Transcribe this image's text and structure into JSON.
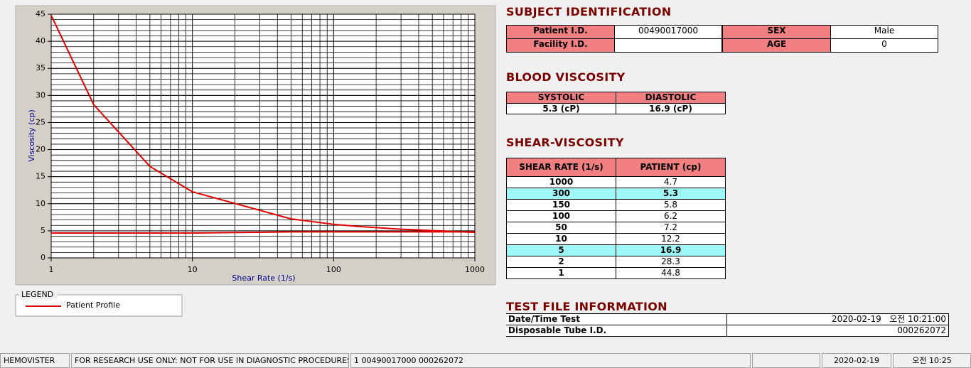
{
  "chart_data": {
    "type": "line",
    "x_scale": "log",
    "x": [
      1,
      2,
      5,
      10,
      50,
      100,
      150,
      300,
      1000
    ],
    "series": [
      {
        "name": "Patient Profile",
        "color": "#e00000",
        "values": [
          44.8,
          28.3,
          16.9,
          12.2,
          7.2,
          6.2,
          5.8,
          5.3,
          4.7
        ]
      },
      {
        "color": "#e00000",
        "values": [
          4.6,
          4.6,
          4.6,
          4.6,
          4.8,
          4.8,
          4.8,
          4.8,
          4.8
        ]
      }
    ],
    "xlim": [
      1,
      1000
    ],
    "xticks": [
      1,
      10,
      100,
      1000
    ],
    "ylim": [
      0,
      45
    ],
    "yticks": [
      0,
      5,
      10,
      15,
      20,
      25,
      30,
      35,
      40,
      45
    ],
    "xlabel": "Shear Rate (1/s)",
    "ylabel": "Viscosity (cp)",
    "grid": true,
    "legend_title": "LEGEND"
  },
  "subject": {
    "title": "SUBJECT IDENTIFICATION",
    "fields": [
      {
        "label": "Patient I.D.",
        "value": "00490017000"
      },
      {
        "label": "SEX",
        "value": "Male"
      },
      {
        "label": "Facility I.D."
      },
      {
        "label": "AGE",
        "value": "0"
      }
    ]
  },
  "blood": {
    "title": "BLOOD VISCOSITY",
    "headers": [
      "SYSTOLIC",
      "DIASTOLIC"
    ],
    "values": [
      "5.3 (cP)",
      "16.9 (cP)"
    ]
  },
  "shear": {
    "title": "SHEAR-VISCOSITY",
    "headers": [
      "SHEAR RATE (1/s)",
      "PATIENT (cp)"
    ],
    "rows": [
      {
        "rate": 1000,
        "patient": 4.7
      },
      {
        "rate": 300,
        "patient": 5.3,
        "highlight": true
      },
      {
        "rate": 150,
        "patient": 5.8
      },
      {
        "rate": 100,
        "patient": 6.2
      },
      {
        "rate": 50,
        "patient": 7.2
      },
      {
        "rate": 10,
        "patient": 12.2
      },
      {
        "rate": 5,
        "patient": 16.9,
        "highlight": true
      },
      {
        "rate": 2,
        "patient": 28.3
      },
      {
        "rate": 1,
        "patient": 44.8
      }
    ]
  },
  "test_file": {
    "title": "TEST FILE INFORMATION",
    "rows": [
      {
        "label": "Date/Time Test",
        "value": "2020-02-19   오전 10:21:00"
      },
      {
        "label": "Disposable Tube I.D.",
        "value": "000262072"
      }
    ]
  },
  "status_bar": [
    "HEMOVISTER",
    "FOR RESEARCH USE ONLY: NOT FOR USE IN DIAGNOSTIC PROCEDURES",
    "1  00490017000  000262072",
    "2020-02-19",
    "오전 10:25"
  ]
}
